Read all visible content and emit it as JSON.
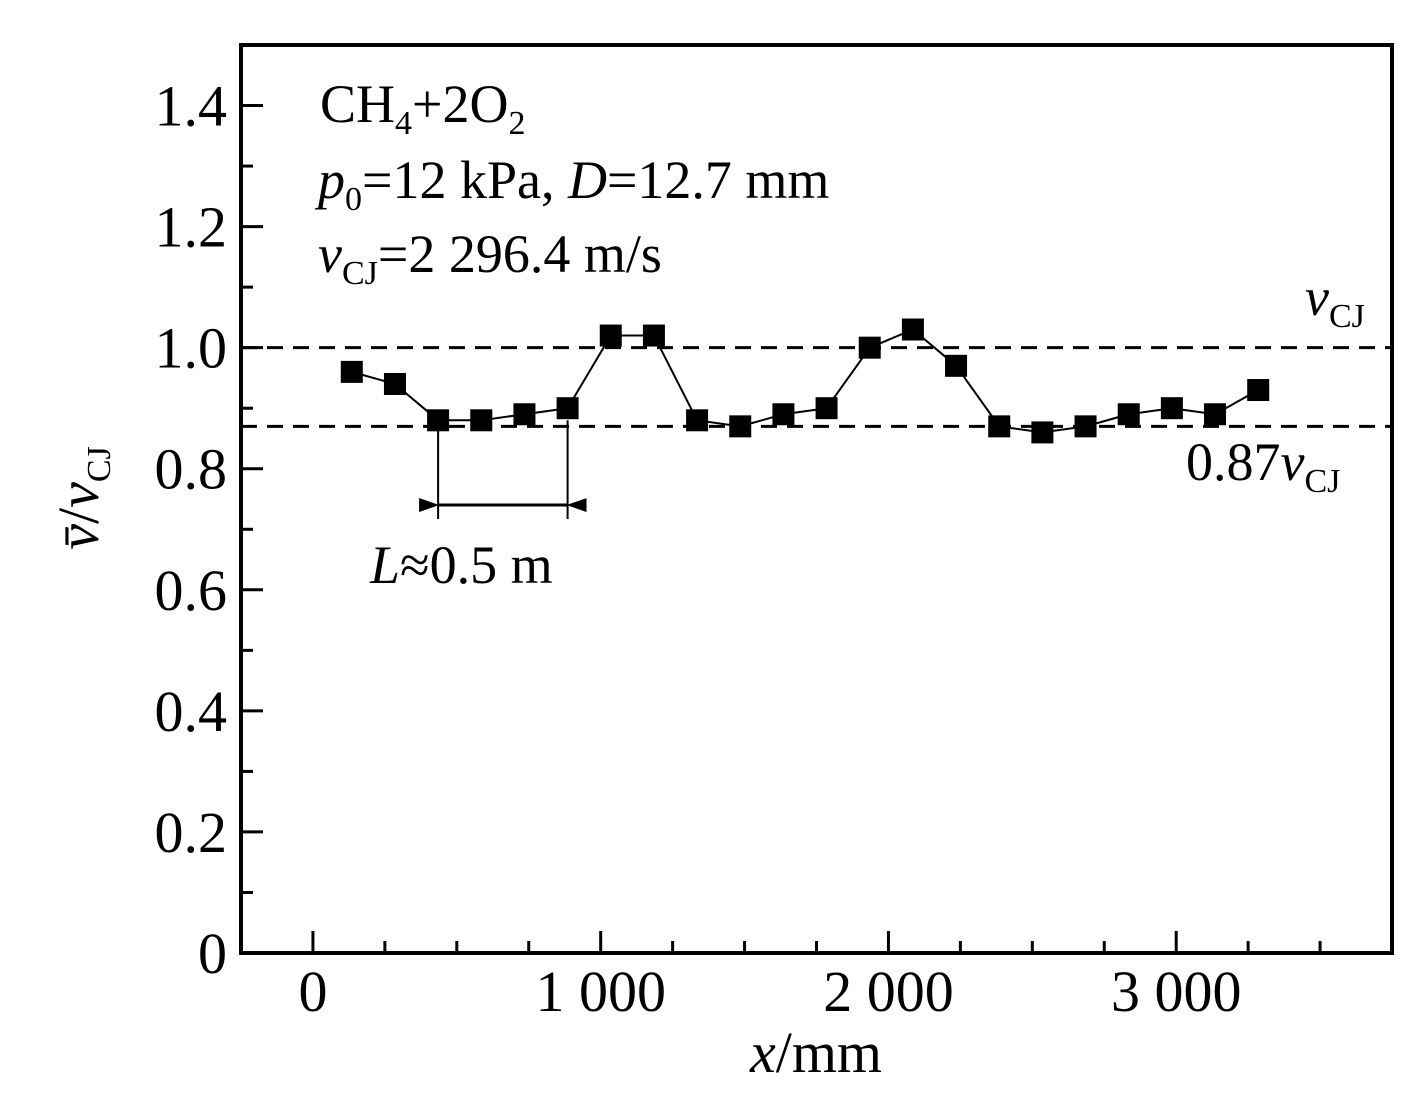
{
  "chart_data": {
    "type": "line",
    "xlabel": {
      "var": "x",
      "unit": "/mm"
    },
    "ylabel": {
      "var": "v̄",
      "sep": "/",
      "var2": "v",
      "sub": "CJ"
    },
    "xlim": [
      -250,
      3750
    ],
    "ylim": [
      0,
      1.5
    ],
    "xticks": [
      0,
      1000,
      2000,
      3000
    ],
    "xtick_labels": [
      "0",
      "1 000",
      "2 000",
      "3 000"
    ],
    "x_minor_step": 250,
    "yticks": [
      0,
      0.2,
      0.4,
      0.6,
      0.8,
      1.0,
      1.2,
      1.4
    ],
    "ytick_labels": [
      "0",
      "0.2",
      "0.4",
      "0.6",
      "0.8",
      "1.0",
      "1.2",
      "1.4"
    ],
    "y_minor_step": 0.1,
    "series": [
      {
        "marker": "square",
        "x": [
          135,
          285,
          435,
          585,
          735,
          885,
          1035,
          1185,
          1335,
          1485,
          1635,
          1785,
          1935,
          2085,
          2235,
          2385,
          2535,
          2685,
          2835,
          2985,
          3135,
          3285
        ],
        "y": [
          0.96,
          0.94,
          0.88,
          0.88,
          0.89,
          0.9,
          1.02,
          1.02,
          0.88,
          0.87,
          0.89,
          0.9,
          1.0,
          1.03,
          0.97,
          0.87,
          0.86,
          0.87,
          0.89,
          0.9,
          0.89,
          0.93
        ]
      }
    ],
    "reference_lines": [
      {
        "y": 1.0,
        "label_var": "v",
        "label_sub": "CJ",
        "label_prefix": ""
      },
      {
        "y": 0.87,
        "label_var": "v",
        "label_sub": "CJ",
        "label_prefix": "0.87"
      }
    ],
    "annotation_lines": [
      {
        "mixture_parts": [
          "CH",
          "4",
          "+2O",
          "2"
        ]
      },
      {
        "p_var": "p",
        "p_sub": "0",
        "p_val": "=12 kPa, ",
        "d_var": "D",
        "d_val": "=12.7 mm"
      },
      {
        "v_var": "v",
        "v_sub": "CJ",
        "v_val": "=2 296.4 m/s"
      }
    ],
    "length_marker": {
      "x_start": 435,
      "x_end": 885,
      "y_top": 0.88,
      "y_arrow": 0.74,
      "label_var": "L",
      "label_rest": "≈0.5 m"
    },
    "grid": false,
    "legend": "none"
  }
}
